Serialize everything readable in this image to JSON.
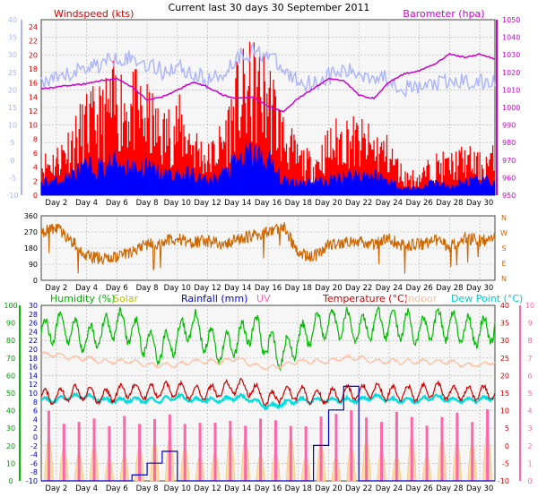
{
  "title": "Current last 30 days 30 September 2011",
  "colors": {
    "windspeed": "#ff0000",
    "windgust": "#0000ff",
    "barometer": "#cc00cc",
    "wind_dir": "#cc6600",
    "humidity": "#00bb00",
    "solar": "#cccc00",
    "rainfall": "#0000cc",
    "uv": "#ff66aa",
    "temperature": "#cc0000",
    "indoor": "#ffbb99",
    "dewpoint": "#00dddd",
    "axis_pale": "#aab4ff",
    "grid": "#b0b0b0"
  },
  "x_ticks": [
    "Day 2",
    "Day 4",
    "Day 6",
    "Day 8",
    "Day 10",
    "Day 12",
    "Day 14",
    "Day 16",
    "Day 18",
    "Day 20",
    "Day 22",
    "Day 24",
    "Day 26",
    "Day 28",
    "Day 30"
  ],
  "chart_data": [
    {
      "type": "area",
      "legend": {
        "windspeed": "Windspeed (kts)",
        "barometer": "Barometer (hpa)"
      },
      "left_axis_pale_ticks": [
        "40",
        "35",
        "30",
        "25",
        "20",
        "15",
        "10",
        "5",
        "0",
        "-5",
        "-10"
      ],
      "left_axis_red_ticks": [
        "24",
        "22",
        "20",
        "18",
        "16",
        "14",
        "12",
        "10",
        "8",
        "6",
        "4",
        "2",
        "0"
      ],
      "right_axis_ticks": [
        "1050",
        "1040",
        "1030",
        "1020",
        "1010",
        "1000",
        "990",
        "980",
        "970",
        "960",
        "950"
      ],
      "ylim_wind": [
        0,
        25
      ],
      "ylim_baro": [
        945,
        1052
      ],
      "series": [
        {
          "key": "windspeed",
          "x": [
            1,
            2,
            3,
            4,
            5,
            6,
            7,
            8,
            9,
            10,
            11,
            12,
            13,
            14,
            15,
            16,
            17,
            18,
            19,
            20,
            21,
            22,
            23,
            24,
            25,
            26,
            27,
            28,
            29,
            30,
            31
          ],
          "values": [
            5,
            6,
            9,
            12,
            13,
            16,
            15,
            13,
            10,
            12,
            9,
            6,
            9,
            16,
            18,
            17,
            10,
            6,
            5,
            8,
            10,
            9,
            8,
            7,
            3,
            3,
            5,
            5,
            6,
            5,
            6
          ]
        },
        {
          "key": "windgust",
          "x": [
            1,
            2,
            3,
            4,
            5,
            6,
            7,
            8,
            9,
            10,
            11,
            12,
            13,
            14,
            15,
            16,
            17,
            18,
            19,
            20,
            21,
            22,
            23,
            24,
            25,
            26,
            27,
            28,
            29,
            30,
            31
          ],
          "values": [
            2,
            2,
            3,
            4,
            4,
            5,
            4,
            4,
            3,
            3,
            3,
            2,
            3,
            5,
            6,
            5,
            2,
            2,
            2,
            2,
            3,
            3,
            3,
            2,
            1,
            1,
            2,
            1,
            2,
            2,
            2
          ]
        },
        {
          "key": "barometer",
          "x": [
            1,
            2,
            3,
            4,
            5,
            6,
            7,
            8,
            9,
            10,
            11,
            12,
            13,
            14,
            15,
            16,
            17,
            18,
            19,
            20,
            21,
            22,
            23,
            24,
            25,
            26,
            27,
            28,
            29,
            30,
            31
          ],
          "values": [
            1010,
            1011,
            1012,
            1013,
            1015,
            1016,
            1011,
            1003,
            1005,
            1009,
            1014,
            1011,
            1006,
            1004,
            1005,
            999,
            996,
            1004,
            1010,
            1016,
            1015,
            1006,
            1004,
            1014,
            1019,
            1021,
            1025,
            1031,
            1029,
            1031,
            1028
          ]
        }
      ]
    },
    {
      "type": "line",
      "direction_labels": [
        "N",
        "W",
        "S",
        "E",
        "N"
      ],
      "left_ticks": [
        "360",
        "270",
        "180",
        "90",
        "0"
      ],
      "ylim": [
        0,
        360
      ],
      "series": [
        {
          "key": "wind_dir",
          "x": [
            1,
            2,
            3,
            4,
            5,
            6,
            7,
            8,
            9,
            10,
            11,
            12,
            13,
            14,
            15,
            16,
            17,
            18,
            19,
            20,
            21,
            22,
            23,
            24,
            25,
            26,
            27,
            28,
            29,
            30,
            31
          ],
          "values": [
            270,
            300,
            220,
            140,
            120,
            130,
            160,
            200,
            210,
            230,
            210,
            220,
            200,
            230,
            250,
            270,
            300,
            150,
            130,
            200,
            210,
            220,
            200,
            230,
            190,
            200,
            220,
            190,
            240,
            220,
            230
          ]
        }
      ]
    },
    {
      "type": "line",
      "legend": {
        "humidity": "Humidity (%)",
        "solar": "Solar",
        "rainfall": "Rainfall (mm)",
        "uv": "UV",
        "temperature": "Temperature (°C)",
        "indoor": "Indoor",
        "dewpoint": "Dew Point (°C)"
      },
      "left_axis_green_ticks": [
        "100",
        "90",
        "80",
        "70",
        "60",
        "50",
        "40",
        "30",
        "20",
        "10",
        "0"
      ],
      "left_axis_inner_ticks": [
        "30",
        "28",
        "26",
        "24",
        "22",
        "20",
        "18",
        "16",
        "14",
        "12",
        "10",
        "8",
        "6",
        "4",
        "2",
        "0",
        "-2",
        "-4",
        "-6",
        "-8",
        "-10"
      ],
      "right_axis_red_ticks": [
        "40",
        "35",
        "30",
        "25",
        "20",
        "15",
        "10",
        "5",
        "0",
        "-5",
        "-10"
      ],
      "right_axis_pink_ticks": [
        "10",
        "9",
        "8",
        "7",
        "6",
        "5",
        "4",
        "3",
        "2",
        "1",
        "0"
      ],
      "ylim_temp": [
        -10,
        40
      ],
      "series": [
        {
          "key": "humidity",
          "x": [
            1,
            2,
            3,
            4,
            5,
            6,
            7,
            8,
            9,
            10,
            11,
            12,
            13,
            14,
            15,
            16,
            17,
            18,
            19,
            20,
            21,
            22,
            23,
            24,
            25,
            26,
            27,
            28,
            29,
            30,
            31
          ],
          "values": [
            83,
            88,
            86,
            80,
            85,
            90,
            86,
            79,
            75,
            82,
            90,
            80,
            75,
            80,
            88,
            77,
            72,
            80,
            87,
            90,
            90,
            85,
            90,
            89,
            90,
            85,
            90,
            88,
            86,
            84,
            88
          ]
        },
        {
          "key": "indoor",
          "x": [
            1,
            2,
            3,
            4,
            5,
            6,
            7,
            8,
            9,
            10,
            11,
            12,
            13,
            14,
            15,
            16,
            17,
            18,
            19,
            20,
            21,
            22,
            23,
            24,
            25,
            26,
            27,
            28,
            29,
            30,
            31
          ],
          "values": [
            26,
            26,
            25,
            25,
            24,
            24,
            24,
            23,
            23,
            23,
            24,
            24,
            24,
            25,
            23,
            22,
            23,
            24,
            24,
            24,
            25,
            25,
            24,
            24,
            24,
            24,
            24,
            24,
            23,
            23,
            24
          ]
        },
        {
          "key": "temperature",
          "x": [
            1,
            2,
            3,
            4,
            5,
            6,
            7,
            8,
            9,
            10,
            11,
            12,
            13,
            14,
            15,
            16,
            17,
            18,
            19,
            20,
            21,
            22,
            23,
            24,
            25,
            26,
            27,
            28,
            29,
            30,
            31
          ],
          "values": [
            14,
            14,
            15,
            15,
            14,
            15,
            16,
            15,
            16,
            16,
            15,
            15,
            16,
            17,
            16,
            13,
            15,
            15,
            14,
            14,
            15,
            15,
            16,
            15,
            15,
            15,
            16,
            15,
            15,
            15,
            15
          ]
        },
        {
          "key": "dewpoint",
          "x": [
            1,
            2,
            3,
            4,
            5,
            6,
            7,
            8,
            9,
            10,
            11,
            12,
            13,
            14,
            15,
            16,
            17,
            18,
            19,
            20,
            21,
            22,
            23,
            24,
            25,
            26,
            27,
            28,
            29,
            30,
            31
          ],
          "values": [
            13,
            13,
            14,
            14,
            13,
            13,
            13,
            13,
            13,
            14,
            13,
            13,
            13,
            14,
            13,
            11,
            12,
            13,
            13,
            13,
            13,
            13,
            14,
            13,
            13,
            13,
            14,
            13,
            13,
            13,
            14
          ]
        },
        {
          "key": "rainfall",
          "x": [
            1,
            2,
            3,
            4,
            5,
            6,
            7,
            8,
            9,
            10,
            11,
            12,
            13,
            14,
            15,
            16,
            17,
            18,
            19,
            20,
            21,
            22,
            23,
            24,
            25,
            26,
            27,
            28,
            29,
            30,
            31
          ],
          "values": [
            0,
            0,
            0,
            0,
            0,
            0,
            0.5,
            1,
            1,
            0,
            0,
            0,
            0,
            0,
            0,
            0,
            0,
            0,
            3,
            3,
            2,
            0,
            0,
            0,
            0,
            0,
            0,
            0,
            0,
            0,
            0
          ]
        }
      ]
    }
  ]
}
